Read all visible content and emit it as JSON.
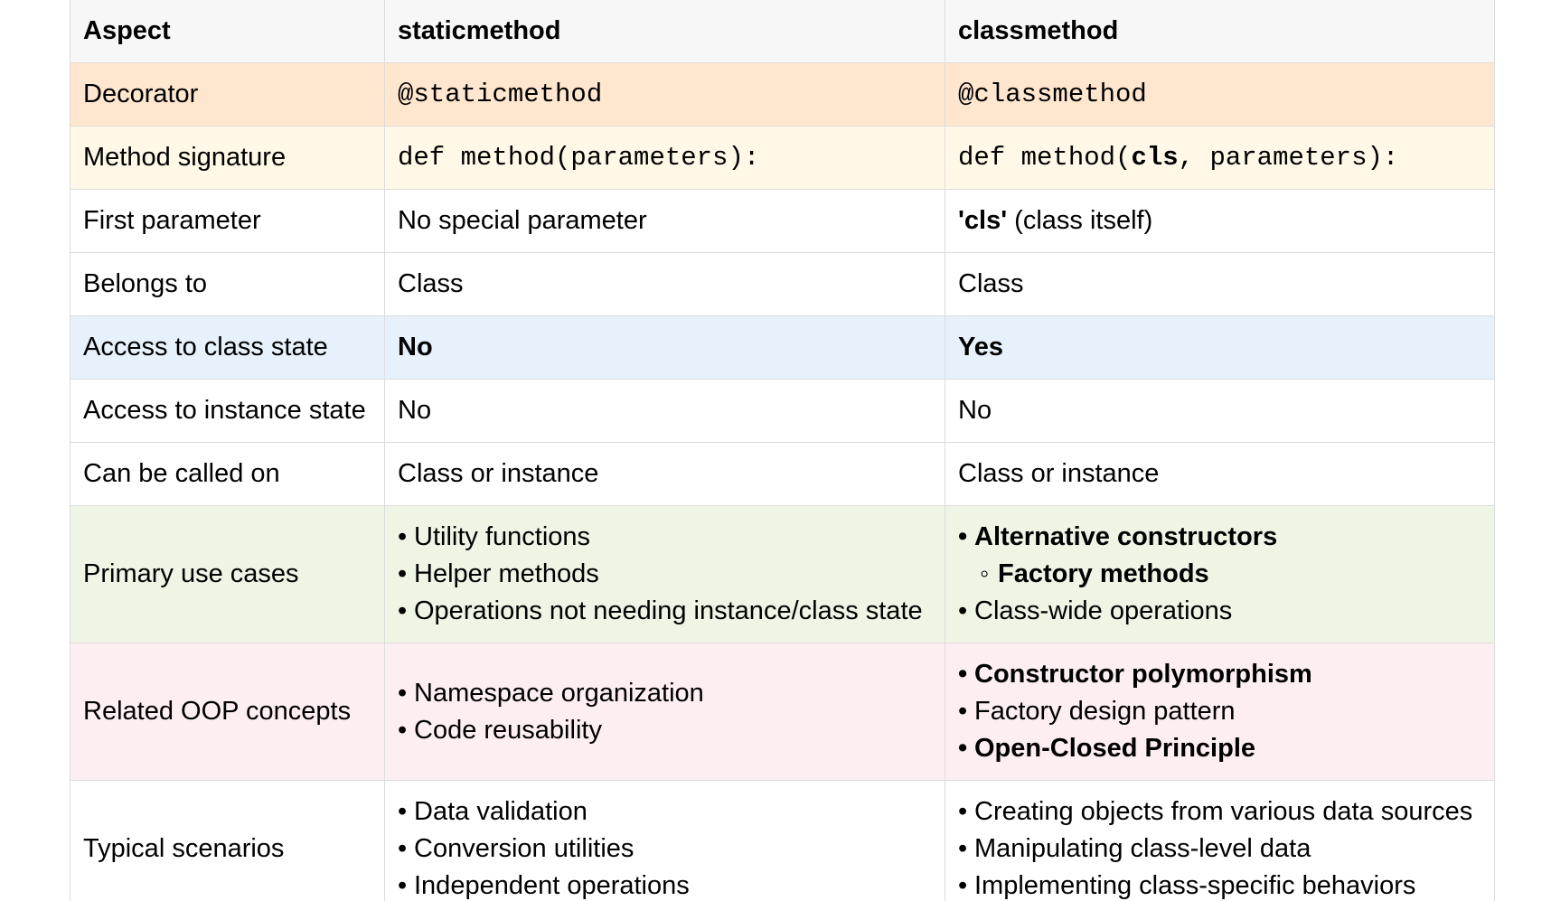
{
  "colors": {
    "header_bg": "#f7f7f7",
    "decorator_bg": "#ffe6cf",
    "signature_bg": "#fff8e6",
    "access_class_bg": "#e6f1fc",
    "use_cases_bg": "#eef5e5",
    "oop_bg": "#fdeef2",
    "border": "#dcdcdc"
  },
  "header": {
    "aspect": "Aspect",
    "static": "staticmethod",
    "class": "classmethod"
  },
  "rows": {
    "decorator": {
      "label": "Decorator",
      "static": "@staticmethod",
      "class": "@classmethod"
    },
    "signature": {
      "label": "Method signature",
      "static": "def method(parameters):",
      "class_prefix": "def method(",
      "class_bold": "cls",
      "class_suffix": ", parameters):"
    },
    "first_param": {
      "label": "First parameter",
      "static": "No special parameter",
      "class_bold": "'cls'",
      "class_rest": " (class itself)"
    },
    "belongs_to": {
      "label": "Belongs to",
      "static": "Class",
      "class": "Class"
    },
    "access_class": {
      "label": "Access to class state",
      "static": "No",
      "class": "Yes"
    },
    "access_instance": {
      "label": "Access to instance state",
      "static": "No",
      "class": "No"
    },
    "called_on": {
      "label": "Can be called on",
      "static": "Class or instance",
      "class": "Class or instance"
    },
    "use_cases": {
      "label": "Primary use cases",
      "static": [
        "Utility functions",
        "Helper methods",
        "Operations not needing instance/class state"
      ],
      "class": [
        "Alternative constructors",
        "Factory methods",
        "Class-wide operations"
      ]
    },
    "oop": {
      "label": "Related OOP concepts",
      "static": [
        "Namespace organization",
        "Code reusability"
      ],
      "class": [
        "Constructor polymorphism",
        "Factory design pattern",
        "Open-Closed Principle"
      ]
    },
    "scenarios": {
      "label": "Typical scenarios",
      "static": [
        "Data validation",
        "Conversion utilities",
        "Independent operations"
      ],
      "class": [
        "Creating objects from various data sources",
        "Manipulating class-level data",
        "Implementing class-specific behaviors"
      ]
    }
  }
}
